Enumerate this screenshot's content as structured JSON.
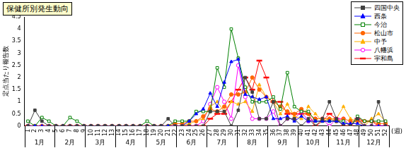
{
  "chart_data": {
    "type": "line",
    "title": "保健所別発生動向",
    "ylabel": "定点当たり報告数",
    "xlabel": "(週)",
    "categories": [
      "1",
      "2",
      "3",
      "4",
      "5",
      "6",
      "7",
      "8",
      "9",
      "10",
      "11",
      "12",
      "13",
      "14",
      "15",
      "16",
      "17",
      "18",
      "19",
      "20",
      "21",
      "22",
      "23",
      "24",
      "25",
      "26",
      "27",
      "28",
      "29",
      "30",
      "31",
      "32",
      "33",
      "34",
      "35",
      "36",
      "37",
      "38",
      "39",
      "40",
      "41",
      "42",
      "43",
      "44",
      "45",
      "46",
      "47",
      "48",
      "49",
      "50",
      "51",
      "52"
    ],
    "x_secondary_labels": [
      "1月",
      "2月",
      "3月",
      "4月",
      "5月",
      "6月",
      "7月",
      "8月",
      "9月",
      "10月",
      "11月",
      "12月"
    ],
    "ylim": [
      0,
      4.5
    ],
    "yticks": [
      0,
      0.5,
      1,
      1.5,
      2,
      2.5,
      3,
      3.5,
      4,
      4.5
    ],
    "grid": false,
    "legend": "top-right",
    "series": [
      {
        "name": "四国中央",
        "color": "#404040",
        "marker": "square",
        "values": [
          0,
          0.65,
          0.2,
          0,
          0,
          0,
          0,
          0,
          0,
          0,
          0,
          0,
          0,
          0,
          0,
          0,
          0,
          0,
          0,
          0,
          0.3,
          0,
          0,
          0,
          0,
          0,
          0.6,
          0.6,
          0.6,
          0,
          0.65,
          2.0,
          1.4,
          0.3,
          0.3,
          1.0,
          0,
          0.3,
          0.3,
          0,
          0.3,
          0,
          0.3,
          1.0,
          0.3,
          0,
          0,
          0.3,
          0,
          0,
          1.0,
          0
        ]
      },
      {
        "name": "西条",
        "color": "#0000ff",
        "marker": "triangle",
        "values": [
          0,
          0,
          0,
          0,
          0,
          0,
          0,
          0,
          0,
          0,
          0,
          0,
          0,
          0,
          0,
          0,
          0,
          0,
          0,
          0,
          0,
          0,
          0,
          0.2,
          0.5,
          0.7,
          1.35,
          0.8,
          1.8,
          2.65,
          2.75,
          1.3,
          1.2,
          1.1,
          1.2,
          0.3,
          0.3,
          0.4,
          0.2,
          0.4,
          0.2,
          0.2,
          0.2,
          0.2,
          0.2,
          0.1,
          0.1,
          0.1,
          0,
          0,
          0,
          0
        ]
      },
      {
        "name": "今治",
        "color": "#008000",
        "marker": "square_open",
        "values": [
          0.2,
          0,
          0.35,
          0.2,
          0,
          0,
          0.35,
          0.2,
          0,
          0,
          0,
          0,
          0,
          0,
          0,
          0,
          0,
          0.2,
          0,
          0,
          0,
          0.2,
          0.2,
          0.2,
          0.6,
          0.6,
          0.6,
          2.4,
          1.6,
          4.0,
          2.8,
          1.6,
          1.0,
          1.0,
          1.0,
          1.2,
          0.7,
          2.2,
          0.8,
          0.6,
          0.6,
          0.2,
          0.2,
          0.2,
          0.2,
          0.2,
          0,
          0.4,
          0.2,
          0.2,
          0.2,
          0.2
        ]
      },
      {
        "name": "松山市",
        "color": "#ff6600",
        "marker": "circle",
        "values": [
          0,
          0,
          0,
          0,
          0,
          0,
          0,
          0,
          0,
          0,
          0,
          0,
          0,
          0,
          0,
          0,
          0,
          0,
          0,
          0,
          0,
          0.1,
          0.1,
          0.2,
          0.2,
          0.4,
          0.7,
          0.6,
          0.8,
          1.3,
          1.3,
          1.4,
          2.0,
          1.5,
          1.2,
          1.0,
          0.8,
          0.6,
          0.5,
          0.7,
          0.5,
          0.3,
          0.3,
          0.3,
          0.2,
          0.3,
          0.2,
          0.2,
          0.2,
          0.2,
          0.1,
          0.1
        ]
      },
      {
        "name": "中予",
        "color": "#ffb000",
        "marker": "triangle",
        "values": [
          0,
          0,
          0,
          0,
          0,
          0,
          0,
          0,
          0,
          0,
          0,
          0,
          0,
          0,
          0,
          0,
          0,
          0,
          0,
          0,
          0,
          0,
          0,
          0.1,
          0.2,
          0.3,
          0.8,
          1.0,
          0.6,
          1.0,
          0.9,
          1.0,
          0.6,
          1.7,
          1.2,
          1.0,
          0.5,
          0.9,
          0.4,
          0.3,
          0.8,
          0.5,
          0.2,
          0.3,
          0.3,
          0.8,
          0.3,
          0.2,
          0,
          0.3,
          0.5,
          0.2
        ]
      },
      {
        "name": "八幡浜",
        "color": "#ff00ff",
        "marker": "circle_open",
        "values": [
          0,
          0,
          0,
          0,
          0,
          0,
          0,
          0,
          0,
          0,
          0,
          0,
          0,
          0,
          0,
          0,
          0,
          0,
          0,
          0,
          0,
          0,
          0,
          0,
          0,
          0.2,
          0.9,
          1.6,
          1.0,
          0.3,
          2.5,
          1.2,
          0.3,
          0.3,
          0.3,
          0.6,
          0,
          0.3,
          0.3,
          0.6,
          0.2,
          0.3,
          0.3,
          0,
          0.3,
          0.3,
          0,
          0.3,
          0,
          0,
          0,
          0
        ]
      },
      {
        "name": "宇和島",
        "color": "#ff0000",
        "marker": "dash",
        "values": [
          0,
          0,
          0,
          0,
          0,
          0,
          0,
          0,
          0,
          0,
          0,
          0,
          0,
          0,
          0,
          0,
          0,
          0,
          0,
          0,
          0,
          0,
          0,
          0,
          0,
          0,
          0.3,
          0.5,
          0.5,
          1.0,
          1.5,
          2.0,
          1.5,
          2.7,
          2.0,
          1.0,
          1.0,
          0.5,
          0.5,
          0.5,
          0.5,
          0,
          0.2,
          0.5,
          0.3,
          0,
          0,
          0.3,
          0.2,
          0.2,
          0,
          0
        ]
      }
    ]
  }
}
